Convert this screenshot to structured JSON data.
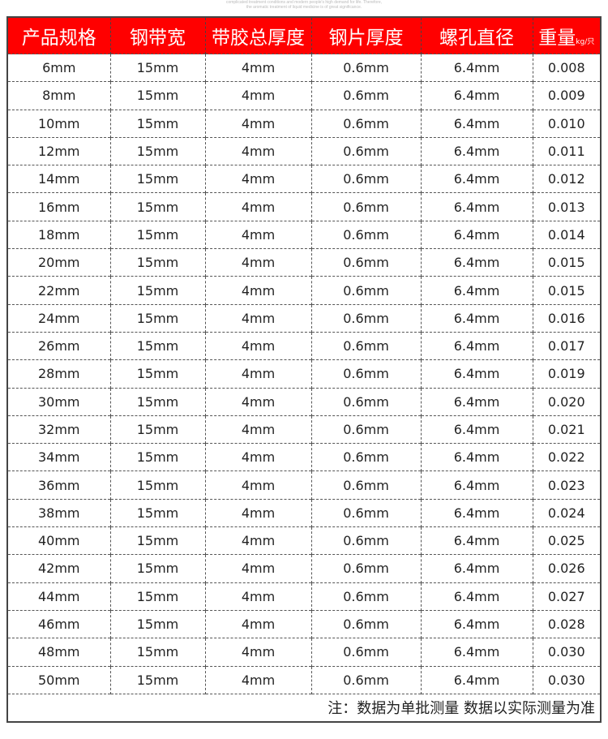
{
  "top_text": [
    "complicated treatment conditions and modern people's high demand for life. Therefore,",
    "the aromatic treatment of liquid medicine is of great significance."
  ],
  "headers": [
    "产品规格",
    "钢带宽",
    "带胶总厚度",
    "钢片厚度",
    "螺孔直径",
    "重量"
  ],
  "weight_unit": "kg/只",
  "rows": [
    [
      "6mm",
      "15mm",
      "4mm",
      "0.6mm",
      "6.4mm",
      "0.008"
    ],
    [
      "8mm",
      "15mm",
      "4mm",
      "0.6mm",
      "6.4mm",
      "0.009"
    ],
    [
      "10mm",
      "15mm",
      "4mm",
      "0.6mm",
      "6.4mm",
      "0.010"
    ],
    [
      "12mm",
      "15mm",
      "4mm",
      "0.6mm",
      "6.4mm",
      "0.011"
    ],
    [
      "14mm",
      "15mm",
      "4mm",
      "0.6mm",
      "6.4mm",
      "0.012"
    ],
    [
      "16mm",
      "15mm",
      "4mm",
      "0.6mm",
      "6.4mm",
      "0.013"
    ],
    [
      "18mm",
      "15mm",
      "4mm",
      "0.6mm",
      "6.4mm",
      "0.014"
    ],
    [
      "20mm",
      "15mm",
      "4mm",
      "0.6mm",
      "6.4mm",
      "0.015"
    ],
    [
      "22mm",
      "15mm",
      "4mm",
      "0.6mm",
      "6.4mm",
      "0.015"
    ],
    [
      "24mm",
      "15mm",
      "4mm",
      "0.6mm",
      "6.4mm",
      "0.016"
    ],
    [
      "26mm",
      "15mm",
      "4mm",
      "0.6mm",
      "6.4mm",
      "0.017"
    ],
    [
      "28mm",
      "15mm",
      "4mm",
      "0.6mm",
      "6.4mm",
      "0.019"
    ],
    [
      "30mm",
      "15mm",
      "4mm",
      "0.6mm",
      "6.4mm",
      "0.020"
    ],
    [
      "32mm",
      "15mm",
      "4mm",
      "0.6mm",
      "6.4mm",
      "0.021"
    ],
    [
      "34mm",
      "15mm",
      "4mm",
      "0.6mm",
      "6.4mm",
      "0.022"
    ],
    [
      "36mm",
      "15mm",
      "4mm",
      "0.6mm",
      "6.4mm",
      "0.023"
    ],
    [
      "38mm",
      "15mm",
      "4mm",
      "0.6mm",
      "6.4mm",
      "0.024"
    ],
    [
      "40mm",
      "15mm",
      "4mm",
      "0.6mm",
      "6.4mm",
      "0.025"
    ],
    [
      "42mm",
      "15mm",
      "4mm",
      "0.6mm",
      "6.4mm",
      "0.026"
    ],
    [
      "44mm",
      "15mm",
      "4mm",
      "0.6mm",
      "6.4mm",
      "0.027"
    ],
    [
      "46mm",
      "15mm",
      "4mm",
      "0.6mm",
      "6.4mm",
      "0.028"
    ],
    [
      "48mm",
      "15mm",
      "4mm",
      "0.6mm",
      "6.4mm",
      "0.030"
    ],
    [
      "50mm",
      "15mm",
      "4mm",
      "0.6mm",
      "6.4mm",
      "0.030"
    ]
  ],
  "note": "注：数据为单批测量 数据以实际测量为准",
  "colors": {
    "header_bg": "#ff0000",
    "header_text": "#ffffff"
  }
}
